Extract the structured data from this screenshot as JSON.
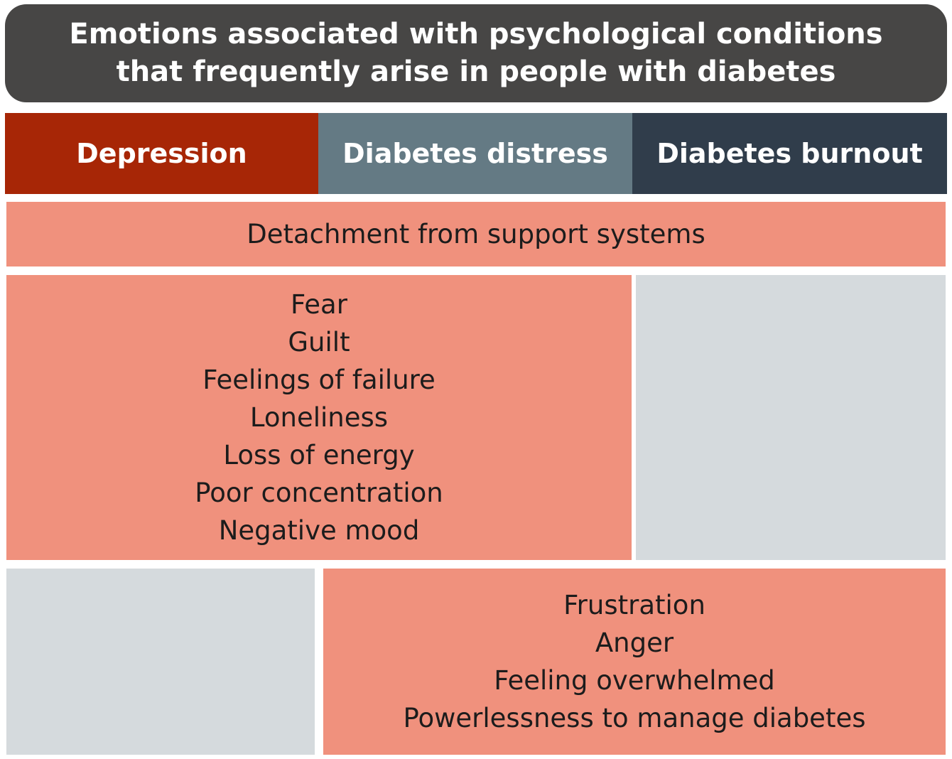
{
  "title": {
    "line1": "Emotions associated with psychological conditions",
    "line2": "that frequently arise in people with diabetes"
  },
  "headers": {
    "depression": "Depression",
    "distress": "Diabetes distress",
    "burnout": "Diabetes burnout"
  },
  "shared_all": "Detachment from support systems",
  "depression_distress": [
    "Fear",
    "Guilt",
    "Feelings of failure",
    "Loneliness",
    "Loss of energy",
    "Poor concentration",
    "Negative mood"
  ],
  "distress_burnout": [
    "Frustration",
    "Anger",
    "Feeling overwhelmed",
    "Powerlessness to manage diabetes"
  ],
  "colors": {
    "title_bg": "#474645",
    "depression": "#a72606",
    "distress": "#647a84",
    "burnout": "#303d4b",
    "shared_cell": "#f0917d",
    "empty_cell": "#d5dadd"
  }
}
